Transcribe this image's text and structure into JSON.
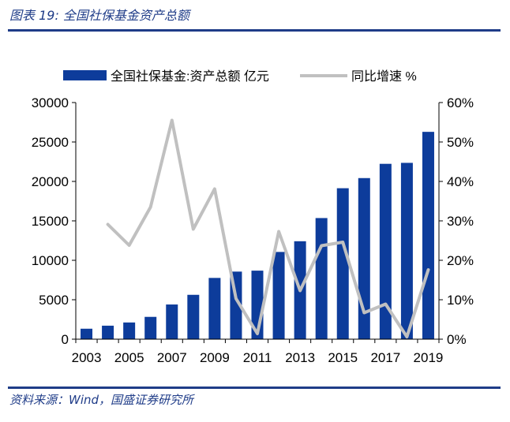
{
  "figure": {
    "title": "图表 19:  全国社保基金资产总额",
    "source": "资料来源：Wind，国盛证券研究所"
  },
  "colors": {
    "bar": "#0d3c9b",
    "line": "#c0c0c0",
    "rule": "#1f3c88"
  },
  "chart_data": {
    "type": "bar",
    "x": [
      "2003",
      "2004",
      "2005",
      "2006",
      "2007",
      "2008",
      "2009",
      "2010",
      "2011",
      "2012",
      "2013",
      "2014",
      "2015",
      "2016",
      "2017",
      "2018",
      "2019"
    ],
    "x_tick_labels": [
      "2003",
      "2005",
      "2007",
      "2009",
      "2011",
      "2013",
      "2015",
      "2017",
      "2019"
    ],
    "y_left": {
      "ylim": [
        0,
        30000
      ],
      "ticks": [
        "0",
        "5000",
        "10000",
        "15000",
        "20000",
        "25000",
        "30000"
      ]
    },
    "y_right": {
      "ylim": [
        0,
        60
      ],
      "ticks": [
        "0%",
        "10%",
        "20%",
        "30%",
        "40%",
        "50%",
        "60%"
      ]
    },
    "legend": {
      "placement": "top"
    },
    "series": [
      {
        "name": "全国社保基金:资产总额 亿元",
        "type": "bar",
        "axis": "left",
        "values": [
          1325,
          1711,
          2118,
          2828,
          4397,
          5624,
          7766,
          8567,
          8688,
          11060,
          12416,
          15356,
          19138,
          20423,
          22231,
          22354,
          26285
        ]
      },
      {
        "name": "同比增速 %",
        "type": "line",
        "axis": "right",
        "values": [
          null,
          29.1,
          23.8,
          33.5,
          55.5,
          27.9,
          38.1,
          10.3,
          1.4,
          27.3,
          12.3,
          23.7,
          24.6,
          6.7,
          8.9,
          0.6,
          17.6
        ]
      }
    ]
  }
}
